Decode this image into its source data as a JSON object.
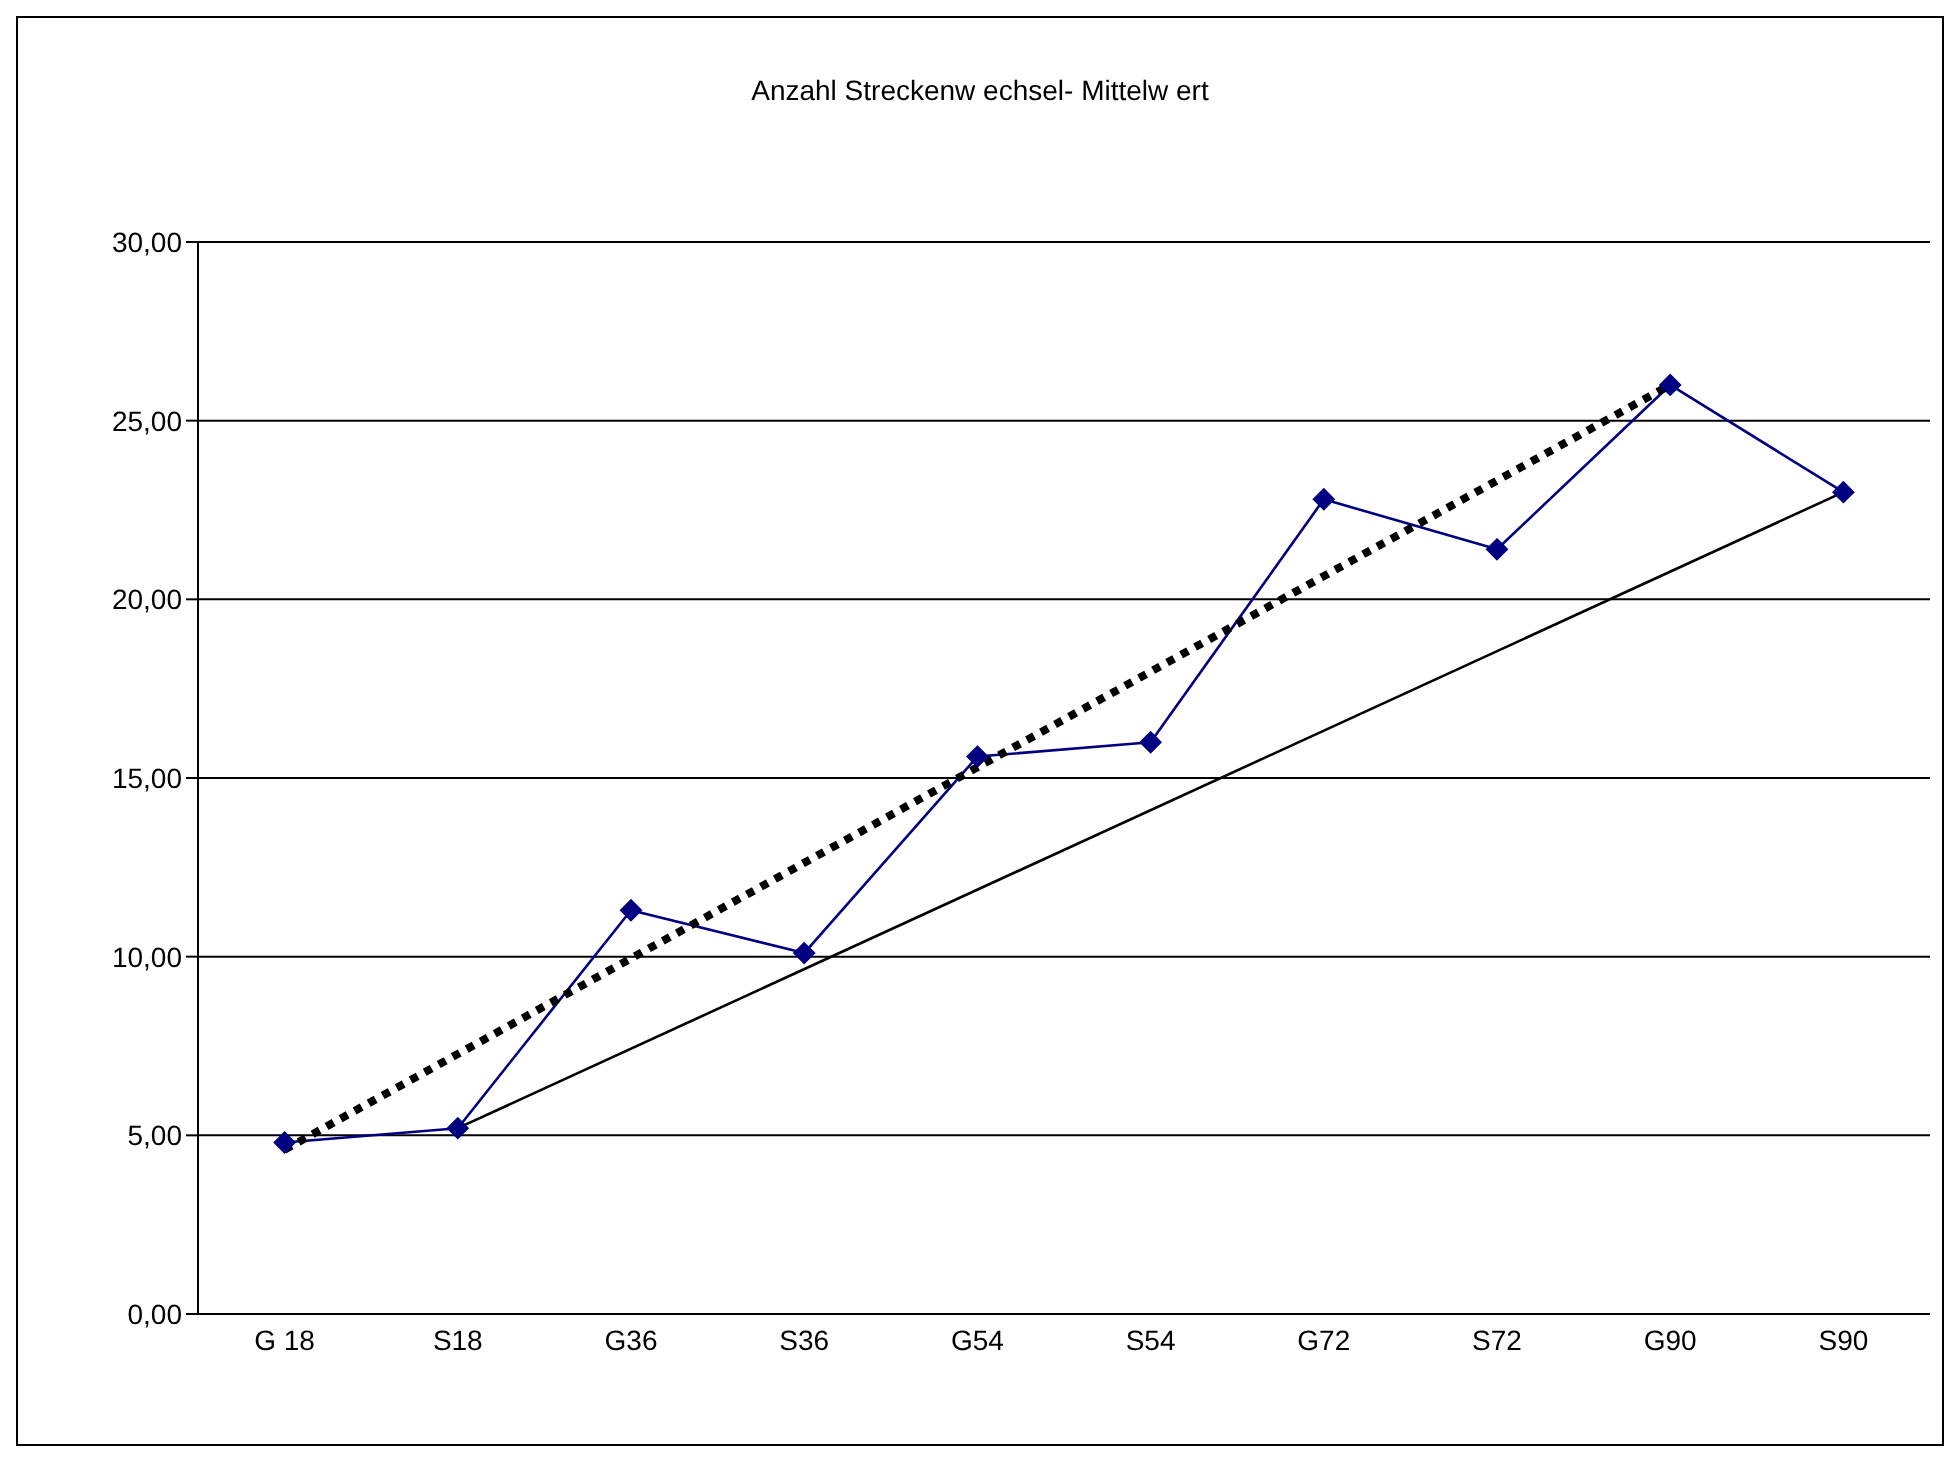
{
  "chart_data": {
    "type": "line",
    "title": "Anzahl Streckenw echsel-  Mittelw ert",
    "categories": [
      "G 18",
      "S18",
      "G36",
      "S36",
      "G54",
      "S54",
      "G72",
      "S72",
      "G90",
      "S90"
    ],
    "series": [
      {
        "color": "#000080",
        "values": [
          4.8,
          5.2,
          11.3,
          10.1,
          15.6,
          16.0,
          22.8,
          21.4,
          26.0,
          23.0
        ],
        "marker": "diamond",
        "line_style": "solid"
      },
      {
        "type": "line",
        "x": [
          "G 18",
          "G90"
        ],
        "color": "#000000",
        "values": [
          4.6,
          26.0
        ],
        "marker": "none",
        "line_style": "dotted"
      },
      {
        "type": "line",
        "x": [
          "S18",
          "S90"
        ],
        "color": "#000000",
        "values": [
          5.2,
          23.0
        ],
        "marker": "none",
        "line_style": "solid"
      }
    ],
    "ylim": [
      0,
      30
    ],
    "yticks": [
      {
        "value": 0,
        "label": "0,00"
      },
      {
        "value": 5,
        "label": "5,00"
      },
      {
        "value": 10,
        "label": "10,00"
      },
      {
        "value": 15,
        "label": "15,00"
      },
      {
        "value": 20,
        "label": "20,00"
      },
      {
        "value": 25,
        "label": "25,00"
      },
      {
        "value": 30,
        "label": "30,00"
      }
    ],
    "grid": "y"
  }
}
